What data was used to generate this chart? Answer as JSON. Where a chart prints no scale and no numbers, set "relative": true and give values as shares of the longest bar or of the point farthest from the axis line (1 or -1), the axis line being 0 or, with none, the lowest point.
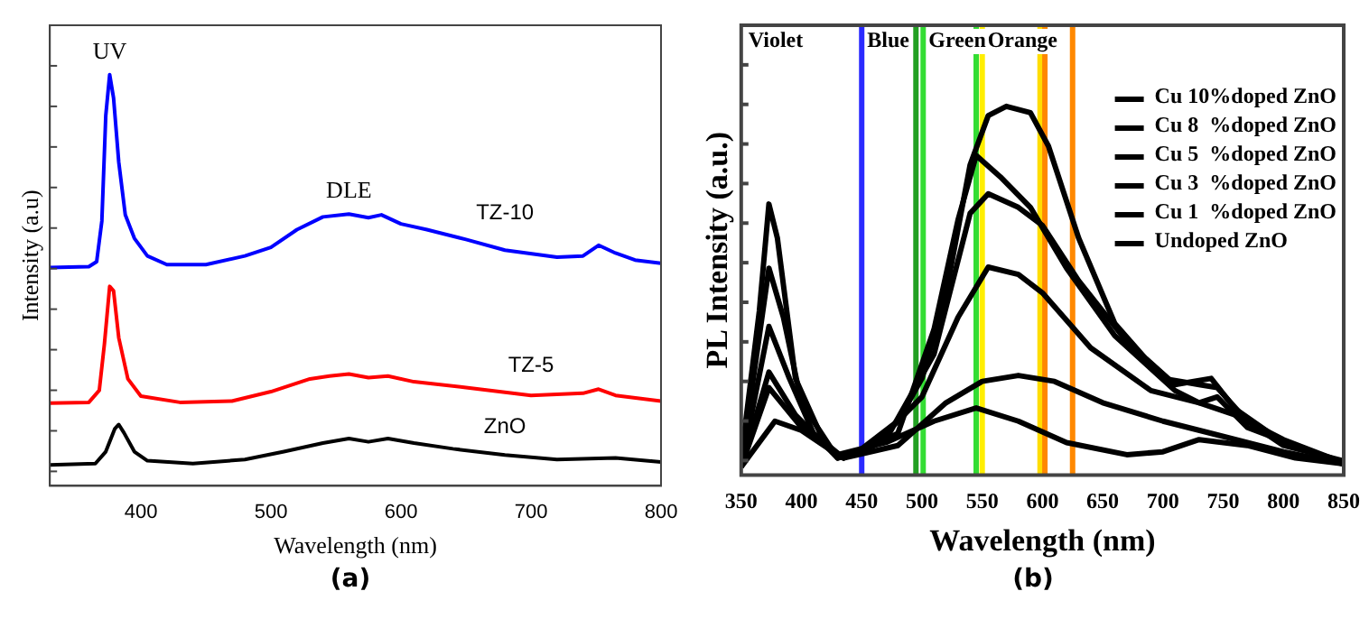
{
  "chart_data": [
    {
      "type": "line",
      "xlabel": "Wavelength (nm)",
      "ylabel": "Intensity (a.u)",
      "relative": true,
      "xlim": [
        330,
        800
      ],
      "xticks": [
        400,
        500,
        600,
        700,
        800
      ],
      "tick_labels": "x",
      "grid": false,
      "legend": false,
      "marker": "none",
      "line_style": "solid",
      "subtitle": "(a)",
      "annotations": [
        {
          "text": "UV",
          "x": 376,
          "y": 1.0
        },
        {
          "text": "DLE",
          "x": 560,
          "y": 0.661
        }
      ],
      "series": [
        {
          "name": "TZ-10",
          "color": "#0000ff",
          "x": [
            330,
            360,
            366,
            370,
            373,
            376,
            379,
            383,
            388,
            395,
            405,
            420,
            450,
            480,
            500,
            520,
            540,
            560,
            575,
            585,
            600,
            620,
            650,
            680,
            720,
            740,
            752,
            765,
            780,
            800
          ],
          "values": [
            0.531,
            0.533,
            0.545,
            0.644,
            0.9,
            1.0,
            0.943,
            0.787,
            0.659,
            0.602,
            0.559,
            0.538,
            0.538,
            0.559,
            0.58,
            0.623,
            0.654,
            0.661,
            0.652,
            0.659,
            0.637,
            0.623,
            0.599,
            0.573,
            0.556,
            0.559,
            0.585,
            0.566,
            0.549,
            0.541
          ]
        },
        {
          "name": "TZ-5",
          "color": "#ff0000",
          "x": [
            330,
            360,
            368,
            372,
            376,
            379,
            383,
            390,
            400,
            430,
            470,
            500,
            530,
            545,
            560,
            575,
            590,
            610,
            650,
            700,
            740,
            752,
            765,
            800
          ],
          "values": [
            0.201,
            0.203,
            0.232,
            0.346,
            0.485,
            0.474,
            0.36,
            0.26,
            0.218,
            0.203,
            0.206,
            0.229,
            0.26,
            0.267,
            0.272,
            0.263,
            0.267,
            0.253,
            0.239,
            0.22,
            0.225,
            0.235,
            0.22,
            0.206
          ]
        },
        {
          "name": "ZnO",
          "color": "#000000",
          "x": [
            330,
            365,
            373,
            380,
            383,
            387,
            395,
            405,
            440,
            480,
            510,
            540,
            560,
            575,
            590,
            610,
            640,
            680,
            720,
            765,
            800
          ],
          "values": [
            0.051,
            0.054,
            0.083,
            0.139,
            0.149,
            0.129,
            0.083,
            0.061,
            0.054,
            0.064,
            0.083,
            0.104,
            0.115,
            0.107,
            0.115,
            0.104,
            0.09,
            0.075,
            0.064,
            0.068,
            0.058
          ]
        }
      ]
    },
    {
      "type": "line",
      "xlabel": "Wavelength (nm)",
      "ylabel": "PL Intensity (a.u.)",
      "relative": true,
      "xlim": [
        350,
        850
      ],
      "xticks": [
        350,
        400,
        450,
        500,
        550,
        600,
        650,
        700,
        750,
        800,
        850
      ],
      "tick_labels": "x",
      "grid": false,
      "legend": "top right",
      "marker": "none",
      "line_style": "solid",
      "subtitle": "(b)",
      "annotations": [
        "Violet"
      ],
      "ref_lines": [
        {
          "axis": "x",
          "value": 450,
          "color": "#2a2aff",
          "label": "Blue"
        },
        {
          "axis": "x",
          "value": 495,
          "color": "#22a022"
        },
        {
          "axis": "x",
          "value": 501,
          "color": "#33dd33",
          "label": "Green"
        },
        {
          "axis": "x",
          "value": 545,
          "color": "#33dd33"
        },
        {
          "axis": "x",
          "value": 550,
          "color": "#ffee00",
          "label": "Orange"
        },
        {
          "axis": "x",
          "value": 598,
          "color": "#ffdd00"
        },
        {
          "axis": "x",
          "value": 602,
          "color": "#ff8800"
        },
        {
          "axis": "x",
          "value": 625,
          "color": "#ff8800"
        }
      ],
      "series": [
        {
          "name": "Cu 10%doped ZnO",
          "color": "#000000",
          "x": [
            350,
            365,
            373,
            380,
            395,
            420,
            435,
            450,
            480,
            500,
            520,
            540,
            555,
            570,
            590,
            605,
            630,
            660,
            700,
            730,
            745,
            770,
            800,
            850
          ],
          "values": [
            0.046,
            0.444,
            0.735,
            0.643,
            0.262,
            0.08,
            0.046,
            0.071,
            0.146,
            0.262,
            0.494,
            0.842,
            0.975,
            1.0,
            0.983,
            0.892,
            0.643,
            0.411,
            0.262,
            0.245,
            0.237,
            0.146,
            0.08,
            0.038
          ]
        },
        {
          "name": "Cu 8  %doped ZnO",
          "color": "#000000",
          "x": [
            350,
            373,
            385,
            400,
            430,
            450,
            480,
            510,
            530,
            545,
            565,
            590,
            620,
            660,
            710,
            730,
            745,
            770,
            850
          ],
          "values": [
            0.03,
            0.561,
            0.428,
            0.196,
            0.046,
            0.063,
            0.113,
            0.395,
            0.693,
            0.867,
            0.809,
            0.726,
            0.561,
            0.378,
            0.229,
            0.196,
            0.212,
            0.129,
            0.03
          ]
        },
        {
          "name": "Cu 5  %doped ZnO",
          "color": "#000000",
          "x": [
            350,
            373,
            390,
            410,
            435,
            470,
            510,
            540,
            555,
            580,
            600,
            630,
            670,
            710,
            740,
            760,
            800,
            850
          ],
          "values": [
            0.022,
            0.403,
            0.262,
            0.113,
            0.046,
            0.096,
            0.328,
            0.71,
            0.763,
            0.726,
            0.677,
            0.527,
            0.362,
            0.245,
            0.262,
            0.179,
            0.088,
            0.03
          ]
        },
        {
          "name": "Cu 3  %doped ZnO",
          "color": "#000000",
          "x": [
            350,
            373,
            395,
            430,
            460,
            500,
            530,
            555,
            580,
            600,
            640,
            690,
            730,
            760,
            800,
            850
          ],
          "values": [
            0.022,
            0.279,
            0.163,
            0.046,
            0.08,
            0.212,
            0.428,
            0.564,
            0.544,
            0.494,
            0.345,
            0.229,
            0.196,
            0.163,
            0.096,
            0.033
          ]
        },
        {
          "name": "Cu 1  %doped ZnO",
          "color": "#000000",
          "x": [
            350,
            373,
            400,
            435,
            480,
            520,
            550,
            580,
            610,
            650,
            700,
            740,
            800,
            850
          ],
          "values": [
            0.022,
            0.237,
            0.129,
            0.046,
            0.08,
            0.196,
            0.254,
            0.27,
            0.254,
            0.196,
            0.146,
            0.113,
            0.063,
            0.03
          ]
        },
        {
          "name": "Undoped ZnO",
          "color": "#000000",
          "x": [
            350,
            378,
            400,
            430,
            470,
            510,
            545,
            580,
            620,
            670,
            700,
            730,
            770,
            810,
            850
          ],
          "values": [
            0.022,
            0.146,
            0.121,
            0.055,
            0.088,
            0.146,
            0.182,
            0.146,
            0.088,
            0.055,
            0.063,
            0.096,
            0.08,
            0.046,
            0.03
          ]
        }
      ]
    }
  ]
}
